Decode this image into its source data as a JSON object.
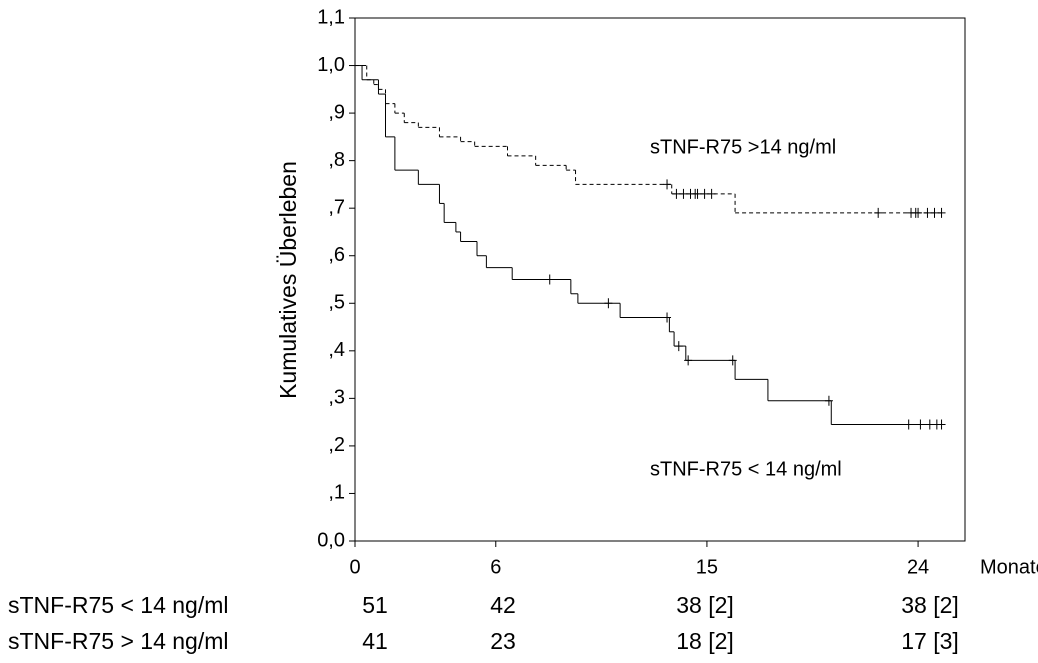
{
  "chart_data": {
    "type": "survival",
    "y_label": "Kumulatives Überleben",
    "x_label": "Monate",
    "xlim": [
      0,
      26
    ],
    "xticks": [
      0,
      6,
      15,
      24
    ],
    "ylim": [
      0,
      1.1
    ],
    "yticks": [
      {
        "value": 0,
        "label": "0,0"
      },
      {
        "value": 0.1,
        "label": ",1"
      },
      {
        "value": 0.2,
        "label": ",2"
      },
      {
        "value": 0.3,
        "label": ",3"
      },
      {
        "value": 0.4,
        "label": ",4"
      },
      {
        "value": 0.5,
        "label": ",5"
      },
      {
        "value": 0.6,
        "label": ",6"
      },
      {
        "value": 0.7,
        "label": ",7"
      },
      {
        "value": 0.8,
        "label": ",8"
      },
      {
        "value": 0.9,
        "label": ",9"
      },
      {
        "value": 1.0,
        "label": "1,0"
      },
      {
        "value": 1.1,
        "label": "1,1"
      }
    ],
    "series": [
      {
        "name": "sTNF-R75 >14 ng/ml",
        "color": "#000000",
        "style": "dashed",
        "x": [
          0,
          0.5,
          0.8,
          1.0,
          1.3,
          1.7,
          2.1,
          2.7,
          3.6,
          4.5,
          5.1,
          6.5,
          7.7,
          9.0,
          9.4,
          13.5,
          16.2
        ],
        "values": [
          1.0,
          0.97,
          0.96,
          0.95,
          0.92,
          0.9,
          0.88,
          0.87,
          0.85,
          0.84,
          0.83,
          0.81,
          0.79,
          0.78,
          0.75,
          0.73,
          0.69
        ],
        "censored_x": [
          13.3,
          13.7,
          14.0,
          14.3,
          14.5,
          14.6,
          14.9,
          15.2,
          22.3,
          23.7,
          23.9,
          24.0,
          24.4,
          24.7,
          25.0
        ],
        "censored_values": [
          0.75,
          0.73,
          0.73,
          0.73,
          0.73,
          0.73,
          0.73,
          0.73,
          0.69,
          0.69,
          0.69,
          0.69,
          0.69,
          0.69,
          0.69
        ]
      },
      {
        "name": "sTNF-R75 < 14 ng/ml",
        "color": "#000000",
        "style": "solid",
        "x": [
          0,
          0.3,
          1.0,
          1.3,
          1.7,
          2.7,
          3.6,
          3.8,
          4.3,
          4.5,
          5.2,
          5.6,
          6.7,
          9.2,
          9.5,
          11.3,
          13.4,
          13.6,
          14.1,
          16.2,
          17.6,
          20.3
        ],
        "values": [
          1.0,
          0.97,
          0.94,
          0.85,
          0.78,
          0.75,
          0.71,
          0.67,
          0.65,
          0.63,
          0.6,
          0.575,
          0.55,
          0.52,
          0.5,
          0.47,
          0.44,
          0.41,
          0.38,
          0.34,
          0.295,
          0.245
        ],
        "censored_x": [
          8.3,
          10.8,
          13.3,
          13.8,
          14.2,
          16.1,
          20.2,
          23.6,
          24.1,
          24.5,
          24.8,
          25.0
        ],
        "censored_values": [
          0.55,
          0.5,
          0.47,
          0.41,
          0.38,
          0.38,
          0.295,
          0.245,
          0.245,
          0.245,
          0.245,
          0.245
        ]
      }
    ],
    "risk_table": {
      "rows": [
        {
          "label": "sTNF-R75 < 14 ng/ml",
          "values": [
            "51",
            "42",
            "38 [2]",
            "38 [2]"
          ]
        },
        {
          "label": "sTNF-R75 > 14 ng/ml",
          "values": [
            "41",
            "23",
            "18 [2]",
            "17 [3]"
          ]
        }
      ]
    }
  }
}
